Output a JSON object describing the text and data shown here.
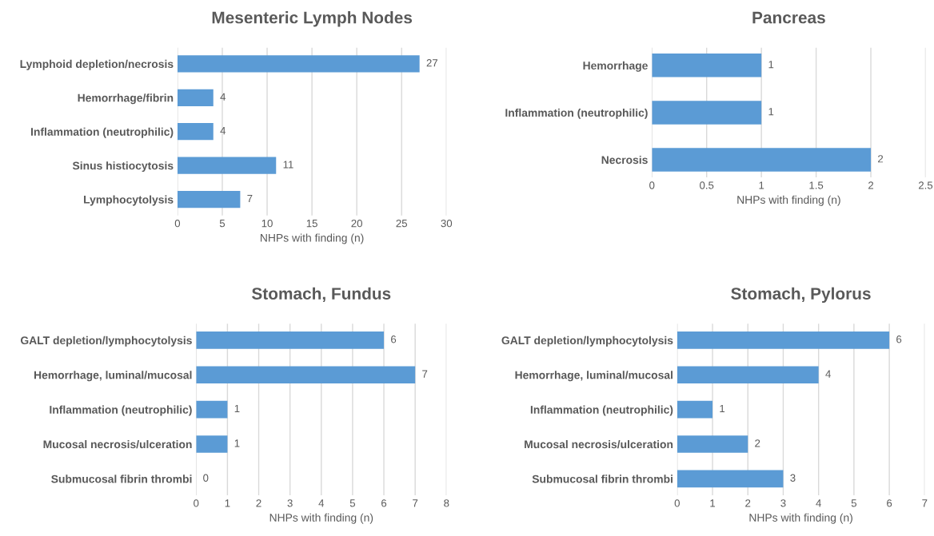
{
  "chart_data": [
    {
      "type": "bar",
      "orientation": "horizontal",
      "title": "Mesenteric Lymph Nodes",
      "xlabel": "NHPs with finding (n)",
      "categories": [
        "Lymphoid depletion/necrosis",
        "Hemorrhage/fibrin",
        "Inflammation (neutrophilic)",
        "Sinus histiocytosis",
        "Lymphocytolysis"
      ],
      "values": [
        27,
        4,
        4,
        11,
        7
      ],
      "color": "#5b9bd5",
      "xlim": [
        0,
        30
      ],
      "xticks": [
        0,
        5,
        10,
        15,
        20,
        25,
        30
      ],
      "grid": "x",
      "data_labels": true
    },
    {
      "type": "bar",
      "orientation": "horizontal",
      "title": "Pancreas",
      "xlabel": "NHPs with finding (n)",
      "categories": [
        "Hemorrhage",
        "Inflammation (neutrophilic)",
        "Necrosis"
      ],
      "values": [
        1,
        1,
        2
      ],
      "color": "#5b9bd5",
      "xlim": [
        0,
        2.5
      ],
      "xticks": [
        0,
        0.5,
        1,
        1.5,
        2,
        2.5
      ],
      "grid": "x",
      "data_labels": true
    },
    {
      "type": "bar",
      "orientation": "horizontal",
      "title": "Stomach, Fundus",
      "xlabel": "NHPs with finding (n)",
      "categories": [
        "GALT depletion/lymphocytolysis",
        "Hemorrhage, luminal/mucosal",
        "Inflammation (neutrophilic)",
        "Mucosal necrosis/ulceration",
        "Submucosal fibrin thrombi"
      ],
      "values": [
        6,
        7,
        1,
        1,
        0
      ],
      "color": "#5b9bd5",
      "xlim": [
        0,
        8
      ],
      "xticks": [
        0,
        1,
        2,
        3,
        4,
        5,
        6,
        7,
        8
      ],
      "grid": "x",
      "data_labels": true
    },
    {
      "type": "bar",
      "orientation": "horizontal",
      "title": "Stomach, Pylorus",
      "xlabel": "NHPs with finding (n)",
      "categories": [
        "GALT depletion/lymphocytolysis",
        "Hemorrhage, luminal/mucosal",
        "Inflammation (neutrophilic)",
        "Mucosal necrosis/ulceration",
        "Submucosal fibrin thrombi"
      ],
      "values": [
        6,
        4,
        1,
        2,
        3
      ],
      "color": "#5b9bd5",
      "xlim": [
        0,
        7
      ],
      "xticks": [
        0,
        1,
        2,
        3,
        4,
        5,
        6,
        7
      ],
      "grid": "x",
      "data_labels": true
    }
  ]
}
